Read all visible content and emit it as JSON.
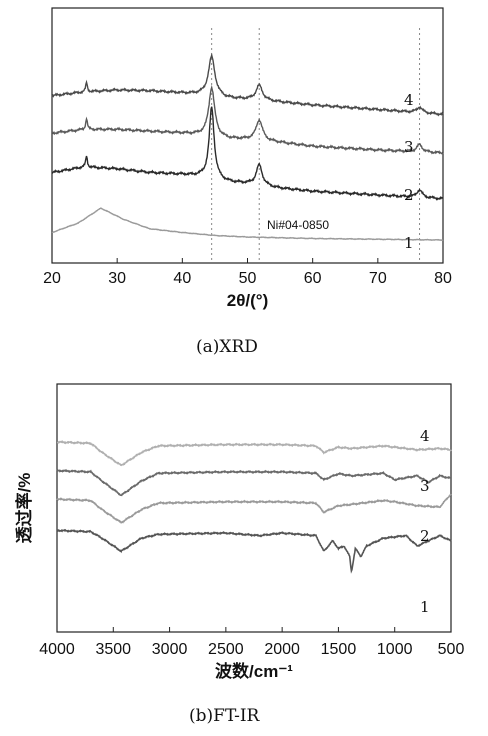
{
  "chart_data": [
    {
      "type": "line",
      "panel": "a",
      "caption": "(a)XRD",
      "xlabel": "2θ/(°)",
      "ylabel": "",
      "xlim": [
        20,
        80
      ],
      "xticks": [
        "20",
        "30",
        "40",
        "50",
        "60",
        "70",
        "80"
      ],
      "annotations": [
        "Ni#04-0850"
      ],
      "reference_lines": [
        44.5,
        51.8,
        76.4
      ],
      "series": [
        {
          "name": "1",
          "color": "#9a9a9a",
          "x": [
            20,
            24,
            27.5,
            31,
            35,
            40,
            45,
            50,
            55,
            60,
            70,
            80
          ],
          "y": [
            0.2,
            0.45,
            0.85,
            0.55,
            0.3,
            0.2,
            0.12,
            0.08,
            0.06,
            0.04,
            0.02,
            0.0
          ],
          "peaks": []
        },
        {
          "name": "2",
          "color": "#2a2a2a",
          "x": [
            20,
            25,
            30,
            35,
            40,
            43,
            47,
            50,
            55,
            60,
            70,
            80
          ],
          "y": [
            1.8,
            1.95,
            1.9,
            1.8,
            1.75,
            1.7,
            1.55,
            1.5,
            1.38,
            1.3,
            1.2,
            1.1
          ],
          "peaks": [
            [
              25.3,
              0.3,
              0.15
            ],
            [
              44.5,
              1.9,
              0.45
            ],
            [
              51.8,
              0.55,
              0.55
            ],
            [
              76.4,
              0.2,
              0.5
            ]
          ]
        },
        {
          "name": "3",
          "color": "#5a5a5a",
          "x": [
            20,
            25,
            30,
            35,
            40,
            43,
            47,
            50,
            55,
            60,
            70,
            80
          ],
          "y": [
            2.85,
            2.95,
            2.95,
            2.9,
            2.85,
            2.8,
            2.7,
            2.68,
            2.6,
            2.5,
            2.4,
            2.32
          ],
          "peaks": [
            [
              25.3,
              0.3,
              0.15
            ],
            [
              44.5,
              1.3,
              0.55
            ],
            [
              51.8,
              0.55,
              0.6
            ],
            [
              76.4,
              0.2,
              0.5
            ]
          ]
        },
        {
          "name": "4",
          "color": "#4a4a4a",
          "x": [
            20,
            25,
            30,
            35,
            40,
            43,
            47,
            50,
            55,
            60,
            70,
            80
          ],
          "y": [
            3.85,
            3.95,
            4.0,
            3.98,
            3.92,
            3.88,
            3.78,
            3.75,
            3.68,
            3.6,
            3.48,
            3.35
          ],
          "peaks": [
            [
              25.3,
              0.25,
              0.15
            ],
            [
              44.5,
              1.05,
              0.6
            ],
            [
              51.8,
              0.4,
              0.6
            ],
            [
              76.4,
              0.15,
              0.5
            ]
          ]
        }
      ]
    },
    {
      "type": "line",
      "panel": "b",
      "caption": "(b)FT-IR",
      "xlabel": "波数/cm⁻¹",
      "ylabel": "透过率/%",
      "xlim": [
        4000,
        500
      ],
      "xticks": [
        "4000",
        "3500",
        "3000",
        "2500",
        "2000",
        "1500",
        "1000",
        "500"
      ],
      "series": [
        {
          "name": "1",
          "color": "#555555",
          "x": [
            4000,
            3700,
            3600,
            3430,
            3250,
            3100,
            2500,
            2200,
            2000,
            1700,
            1630,
            1550,
            1500,
            1450,
            1400,
            1384,
            1350,
            1300,
            1250,
            1100,
            900,
            800,
            600,
            500
          ],
          "y": [
            4.6,
            4.55,
            4.3,
            3.8,
            4.3,
            4.45,
            4.5,
            4.4,
            4.5,
            4.4,
            3.8,
            4.2,
            3.9,
            4.0,
            3.6,
            3.0,
            3.9,
            3.6,
            4.0,
            4.3,
            4.4,
            4.0,
            4.4,
            4.2
          ]
        },
        {
          "name": "2",
          "color": "#9a9a9a",
          "x": [
            4000,
            3700,
            3600,
            3430,
            3250,
            3100,
            2500,
            2000,
            1700,
            1630,
            1500,
            1384,
            1100,
            1000,
            800,
            600,
            500
          ],
          "y": [
            5.8,
            5.75,
            5.4,
            4.9,
            5.4,
            5.65,
            5.7,
            5.7,
            5.65,
            5.3,
            5.55,
            5.6,
            5.75,
            5.7,
            5.55,
            5.5,
            6.0
          ]
        },
        {
          "name": "3",
          "color": "#6a6a6a",
          "x": [
            4000,
            3700,
            3600,
            3430,
            3250,
            3100,
            2500,
            2000,
            1700,
            1630,
            1500,
            1384,
            1100,
            1000,
            800,
            700,
            600,
            500
          ],
          "y": [
            6.9,
            6.85,
            6.5,
            5.95,
            6.5,
            6.8,
            6.85,
            6.85,
            6.8,
            6.55,
            6.78,
            6.7,
            6.8,
            6.55,
            6.7,
            6.45,
            6.7,
            6.6
          ]
        },
        {
          "name": "4",
          "color": "#b0b0b0",
          "x": [
            4000,
            3700,
            3600,
            3430,
            3250,
            3100,
            2500,
            2000,
            1700,
            1630,
            1500,
            1384,
            1100,
            1000,
            800,
            600,
            500
          ],
          "y": [
            8.0,
            7.95,
            7.6,
            7.1,
            7.6,
            7.85,
            7.9,
            7.9,
            7.85,
            7.6,
            7.8,
            7.75,
            7.85,
            7.8,
            7.7,
            7.75,
            7.7
          ]
        }
      ]
    }
  ]
}
